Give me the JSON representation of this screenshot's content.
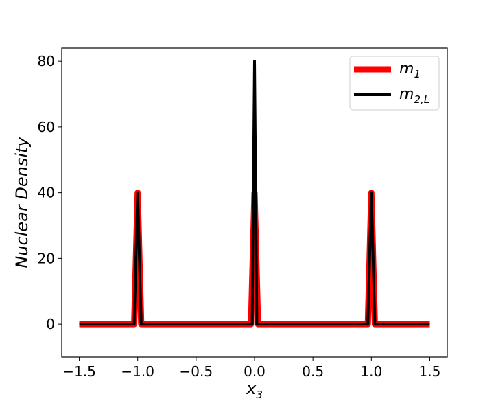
{
  "chart_data": {
    "type": "line",
    "title": "",
    "xlabel": "x",
    "xlabel_sub": "3",
    "ylabel": "Nuclear Density",
    "xlim": [
      -1.65,
      1.65
    ],
    "ylim": [
      -10,
      84
    ],
    "xticks": [
      -1.5,
      -1.0,
      -0.5,
      0.0,
      0.5,
      1.0,
      1.5
    ],
    "xtick_labels": [
      "−1.5",
      "−1.0",
      "−0.5",
      "0.0",
      "0.5",
      "1.0",
      "1.5"
    ],
    "yticks": [
      0,
      20,
      40,
      60,
      80
    ],
    "ytick_labels": [
      "0",
      "20",
      "40",
      "60",
      "80"
    ],
    "grid": false,
    "legend_position": "top-right",
    "series": [
      {
        "name": "m",
        "name_sub": "1",
        "color": "#ff0000",
        "x": [
          -1.5,
          -1.03,
          -1.0,
          -0.97,
          -0.03,
          0.0,
          0.03,
          0.97,
          1.0,
          1.03,
          1.5
        ],
        "y": [
          0,
          0,
          40,
          0,
          0,
          40,
          0,
          0,
          40,
          0,
          0
        ]
      },
      {
        "name": "m",
        "name_sub": "2,L",
        "color": "#000000",
        "x": [
          -1.5,
          -1.03,
          -1.0,
          -0.97,
          -0.02,
          0.0,
          0.02,
          0.97,
          1.0,
          1.03,
          1.5
        ],
        "y": [
          0,
          0,
          40,
          0,
          0,
          80,
          0,
          0,
          40,
          0,
          0
        ]
      }
    ]
  }
}
